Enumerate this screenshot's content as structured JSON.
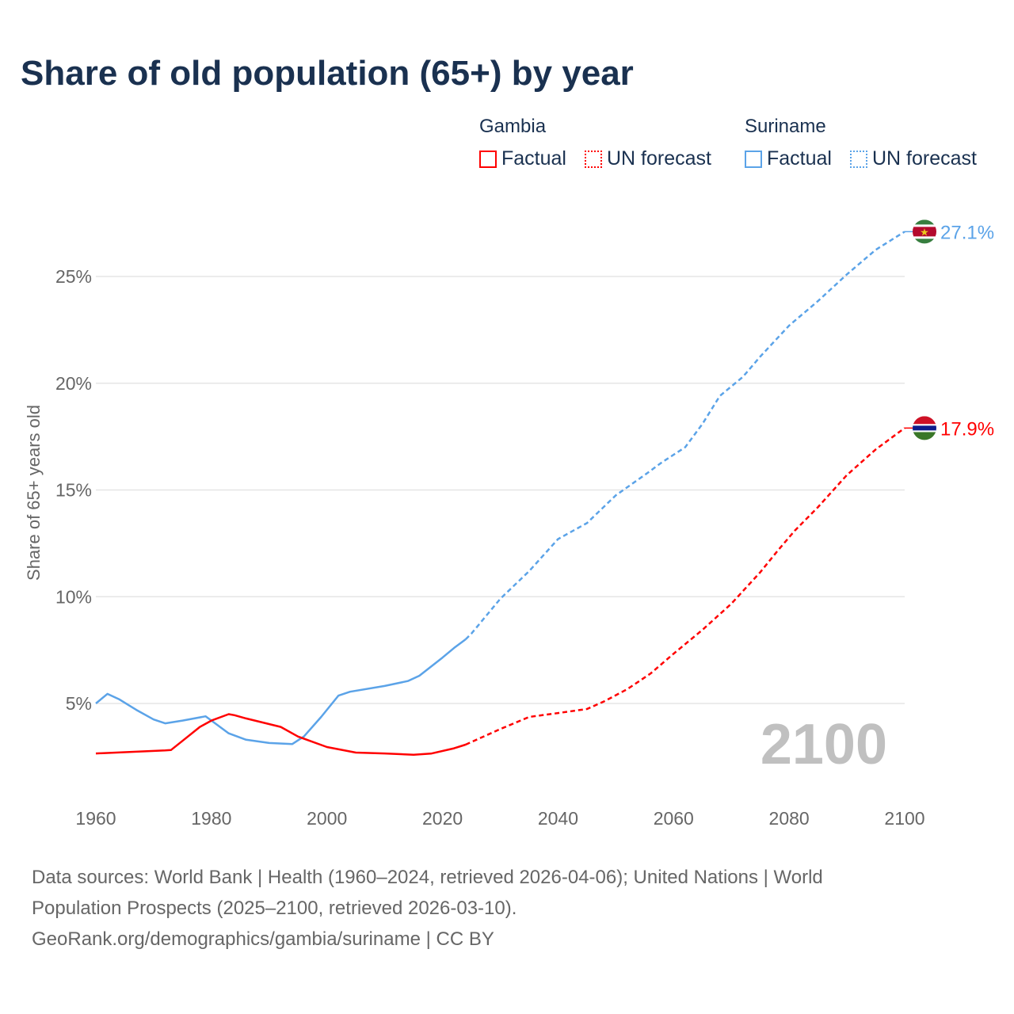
{
  "chart_data": {
    "type": "line",
    "title": "Share of old population (65+) by year",
    "ylabel": "Share of 65+ years old",
    "xlabel": "",
    "xlim": [
      1960,
      2100
    ],
    "ylim": [
      0,
      27.5
    ],
    "x_ticks": [
      "1960",
      "1980",
      "2000",
      "2020",
      "2040",
      "2060",
      "2080",
      "2100"
    ],
    "y_ticks": [
      "5%",
      "10%",
      "15%",
      "20%",
      "25%"
    ],
    "year_watermark": "2100",
    "legend": {
      "groups": [
        {
          "name": "Gambia",
          "items": [
            "Factual",
            "UN forecast"
          ]
        },
        {
          "name": "Suriname",
          "items": [
            "Factual",
            "UN forecast"
          ]
        }
      ]
    },
    "series": [
      {
        "name": "Suriname",
        "color": "#5ba3e8",
        "end_label": "27.1%",
        "forecast_start": 2024,
        "x": [
          1960,
          1962,
          1964,
          1967,
          1970,
          1972,
          1975,
          1979,
          1980,
          1983,
          1986,
          1990,
          1994,
          1996,
          1999,
          2002,
          2004,
          2010,
          2014,
          2016,
          2020,
          2022,
          2024,
          2025,
          2030,
          2035,
          2040,
          2045,
          2050,
          2055,
          2058,
          2062,
          2065,
          2068,
          2072,
          2075,
          2080,
          2085,
          2090,
          2095,
          2100
        ],
        "y": [
          5.0,
          5.45,
          5.2,
          4.7,
          4.25,
          4.07,
          4.2,
          4.4,
          4.2,
          3.6,
          3.3,
          3.15,
          3.1,
          3.45,
          4.37,
          5.37,
          5.55,
          5.82,
          6.05,
          6.3,
          7.15,
          7.6,
          8.0,
          8.27,
          9.9,
          11.2,
          12.7,
          13.45,
          14.75,
          15.7,
          16.3,
          17.0,
          18.1,
          19.4,
          20.3,
          21.25,
          22.7,
          23.85,
          25.1,
          26.25,
          27.1
        ]
      },
      {
        "name": "Gambia",
        "color": "#ff0000",
        "end_label": "17.9%",
        "forecast_start": 2024,
        "x": [
          1960,
          1972,
          1973,
          1975,
          1978,
          1980,
          1983,
          1984,
          1986,
          1992,
          1995,
          2000,
          2005,
          2010,
          2015,
          2018,
          2022,
          2024,
          2030,
          2035,
          2040,
          2045,
          2048,
          2052,
          2056,
          2060,
          2065,
          2070,
          2075,
          2078,
          2081,
          2085,
          2090,
          2095,
          2100
        ],
        "y": [
          2.66,
          2.8,
          2.82,
          3.25,
          3.9,
          4.2,
          4.5,
          4.45,
          4.3,
          3.9,
          3.45,
          2.96,
          2.7,
          2.66,
          2.6,
          2.65,
          2.9,
          3.07,
          3.8,
          4.37,
          4.55,
          4.74,
          5.1,
          5.67,
          6.4,
          7.33,
          8.45,
          9.67,
          11.15,
          12.15,
          13.1,
          14.2,
          15.7,
          16.9,
          17.9
        ]
      }
    ]
  },
  "footer": {
    "line1": "Data sources: World Bank | Health (1960–2024, retrieved 2026-04-06); United Nations | World",
    "line2": "Population Prospects (2025–2100, retrieved 2026-03-10).",
    "line3": "GeoRank.org/demographics/gambia/suriname | CC BY"
  }
}
